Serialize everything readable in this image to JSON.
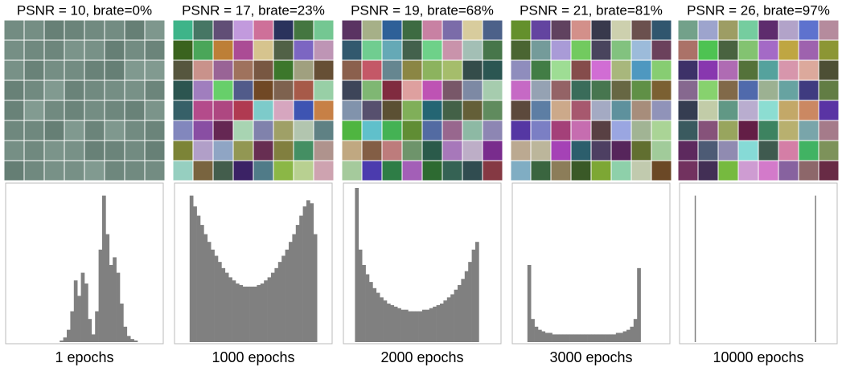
{
  "chart_data": [
    {
      "type": "histogram",
      "title": "PSNR = 10, brate=0%",
      "caption": "1 epochs",
      "ylim": [
        0,
        100
      ],
      "values": [
        0,
        0,
        0,
        0,
        0,
        0,
        0,
        0,
        0,
        0,
        0,
        0,
        0,
        1,
        3,
        8,
        20,
        40,
        30,
        45,
        38,
        15,
        5,
        20,
        60,
        95,
        70,
        50,
        55,
        45,
        25,
        10,
        4,
        2,
        1,
        0,
        0,
        0,
        0,
        0
      ]
    },
    {
      "type": "histogram",
      "title": "PSNR = 17, brate=23%",
      "caption": "1000 epochs",
      "ylim": [
        0,
        100
      ],
      "values": [
        0,
        0,
        95,
        88,
        82,
        76,
        70,
        65,
        60,
        56,
        52,
        48,
        45,
        42,
        40,
        38,
        37,
        36,
        36,
        36,
        36,
        37,
        38,
        40,
        42,
        45,
        48,
        52,
        56,
        60,
        65,
        70,
        76,
        82,
        88,
        92,
        90,
        70,
        0,
        0
      ]
    },
    {
      "type": "histogram",
      "title": "PSNR = 19, brate=68%",
      "caption": "2000 epochs",
      "ylim": [
        0,
        100
      ],
      "values": [
        0,
        100,
        60,
        50,
        44,
        39,
        35,
        32,
        29,
        27,
        25,
        24,
        23,
        22,
        21,
        21,
        20,
        20,
        20,
        20,
        21,
        21,
        22,
        23,
        24,
        25,
        27,
        29,
        31,
        34,
        37,
        41,
        46,
        52,
        60,
        65,
        0,
        0,
        0,
        0
      ]
    },
    {
      "type": "histogram",
      "title": "PSNR = 21, brate=81%",
      "caption": "3000 epochs",
      "ylim": [
        0,
        100
      ],
      "values": [
        0,
        0,
        50,
        15,
        10,
        8,
        7,
        6,
        6,
        5,
        5,
        5,
        5,
        5,
        5,
        5,
        5,
        5,
        5,
        5,
        5,
        5,
        5,
        5,
        5,
        5,
        5,
        6,
        6,
        7,
        8,
        10,
        15,
        48,
        0,
        0,
        0,
        0,
        0,
        0
      ]
    },
    {
      "type": "histogram",
      "title": "PSNR = 26, brate=97%",
      "caption": "10000 epochs",
      "ylim": [
        0,
        100
      ],
      "values": [
        0,
        0,
        95,
        0,
        0,
        0,
        0,
        0,
        0,
        0,
        0,
        0,
        0,
        0,
        0,
        0,
        0,
        0,
        0,
        0,
        0,
        0,
        0,
        0,
        0,
        0,
        0,
        0,
        0,
        0,
        0,
        0,
        0,
        0,
        0,
        0,
        95,
        0,
        0,
        0
      ]
    }
  ]
}
